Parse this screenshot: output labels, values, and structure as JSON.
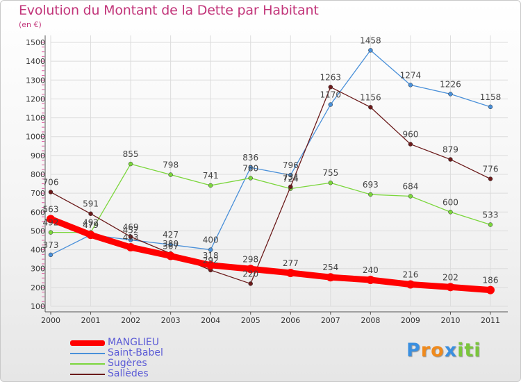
{
  "chart_data": {
    "type": "line",
    "title": "Evolution du Montant de la Dette par Habitant",
    "subtitle": "(en €)",
    "x": [
      "2000",
      "2001",
      "2002",
      "2003",
      "2004",
      "2005",
      "2006",
      "2007",
      "2008",
      "2009",
      "2010",
      "2011"
    ],
    "yticks": [
      100,
      200,
      300,
      400,
      500,
      600,
      700,
      800,
      900,
      1000,
      1100,
      1200,
      1300,
      1400,
      1500
    ],
    "ylim": [
      100,
      1500
    ],
    "grid": true,
    "legend_position": "bottom-left",
    "series": [
      {
        "name": "MANGLIEU",
        "color": "#ff0000",
        "values": [
          563,
          479,
          413,
          367,
          318,
          298,
          277,
          254,
          240,
          216,
          202,
          186
        ]
      },
      {
        "name": "Saint-Babel",
        "color": "#4a90d9",
        "values": [
          373,
          479,
          452,
          427,
          400,
          836,
          796,
          1170,
          1458,
          1274,
          1226,
          1158
        ]
      },
      {
        "name": "Sugères",
        "color": "#7bd63c",
        "values": [
          492,
          492,
          855,
          798,
          741,
          780,
          724,
          755,
          693,
          684,
          600,
          533
        ]
      },
      {
        "name": "Sallèdes",
        "color": "#6b1a1a",
        "values": [
          706,
          591,
          469,
          380,
          292,
          220,
          734,
          1263,
          1156,
          960,
          879,
          776
        ]
      }
    ]
  },
  "logo": {
    "letters": [
      "P",
      "r",
      "o",
      "x",
      "i",
      "t",
      "i"
    ],
    "colors": [
      "#3a8fe0",
      "#f08a1c",
      "#f08a1c",
      "#3a8fe0",
      "#7bc63c",
      "#7bc63c",
      "#7bc63c"
    ]
  }
}
